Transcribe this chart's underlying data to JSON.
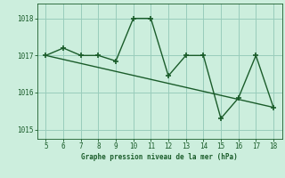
{
  "x": [
    5,
    6,
    7,
    8,
    9,
    10,
    11,
    12,
    13,
    14,
    15,
    16,
    17,
    18
  ],
  "y": [
    1017.0,
    1017.2,
    1017.0,
    1017.0,
    1016.85,
    1018.0,
    1018.0,
    1016.45,
    1017.0,
    1017.0,
    1015.3,
    1015.85,
    1017.0,
    1015.6
  ],
  "trend_x": [
    5,
    18
  ],
  "trend_y": [
    1017.0,
    1015.6
  ],
  "line_color": "#1a5c2a",
  "bg_color": "#cceedd",
  "grid_color": "#99ccbb",
  "xlabel": "Graphe pression niveau de la mer (hPa)",
  "xlim": [
    4.5,
    18.5
  ],
  "ylim": [
    1014.75,
    1018.4
  ],
  "yticks": [
    1015,
    1016,
    1017,
    1018
  ],
  "xticks": [
    5,
    6,
    7,
    8,
    9,
    10,
    11,
    12,
    13,
    14,
    15,
    16,
    17,
    18
  ],
  "marker": "+",
  "marker_size": 5,
  "linewidth": 1.0
}
